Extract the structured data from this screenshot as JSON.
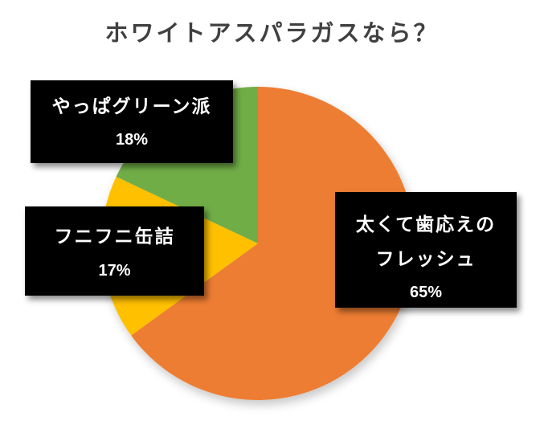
{
  "chart_data": {
    "type": "pie",
    "title": "ホワイトアスパラガスなら？",
    "categories": [
      "太くて歯応えのフレッシュ",
      "フニフニ缶詰",
      "やっぱグリーン派"
    ],
    "values": [
      65,
      17,
      18
    ],
    "unit": "%",
    "colors": [
      "#ED7D31",
      "#FFC000",
      "#70AD47"
    ],
    "start_angle": "12 o'clock",
    "direction": "clockwise",
    "data_labels": [
      {
        "name_lines": [
          "太くて歯応えの",
          "フレッシュ"
        ],
        "value_text": "65%"
      },
      {
        "name_lines": [
          "フニフニ缶詰"
        ],
        "value_text": "17%"
      },
      {
        "name_lines": [
          "やっぱグリーン派"
        ],
        "value_text": "18%"
      }
    ],
    "legend": "none"
  },
  "title": "ホワイトアスパラガスなら？",
  "labels": {
    "orange": {
      "line1": "太くて歯応えの",
      "line2": "フレッシュ",
      "pct": "65%"
    },
    "yellow": {
      "line1": "フニフニ缶詰",
      "pct": "17%"
    },
    "green": {
      "line1": "やっぱグリーン派",
      "pct": "18%"
    }
  }
}
